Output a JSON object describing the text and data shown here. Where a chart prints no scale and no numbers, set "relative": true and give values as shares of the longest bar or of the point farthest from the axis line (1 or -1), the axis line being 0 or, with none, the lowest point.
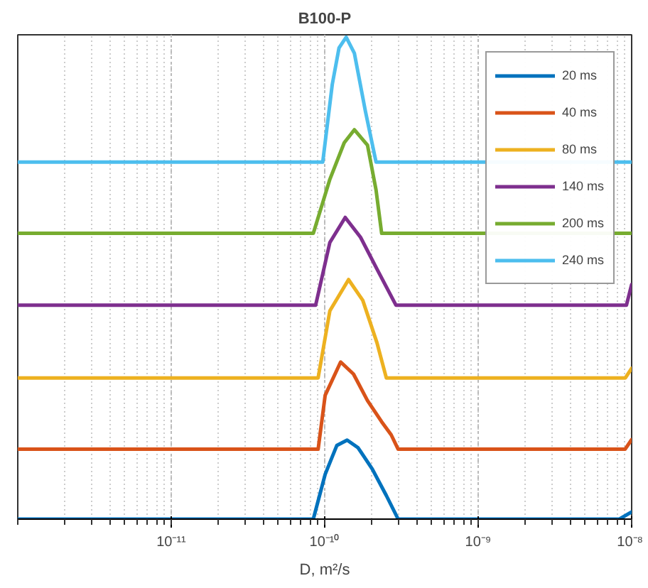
{
  "chart_data": {
    "type": "line",
    "title": "B100-P",
    "xlabel": "D, m²/s",
    "relative": true,
    "log": "x",
    "grid": "x",
    "legend": "top right",
    "line_style": "solid",
    "marker": "none",
    "xlim": [
      1e-12,
      1e-08
    ],
    "xticks": [
      {
        "value": 1e-11,
        "label": "10⁻¹¹"
      },
      {
        "value": 1e-10,
        "label": "10⁻¹⁰"
      },
      {
        "value": 1e-09,
        "label": "10⁻⁹"
      },
      {
        "value": 1e-08,
        "label": "10⁻⁸"
      }
    ],
    "series": [
      {
        "name": "20 ms",
        "color": "#0072bd",
        "x": [
          1e-12,
          8.43e-11,
          1.007e-10,
          1.2e-10,
          1.4e-10,
          1.65e-10,
          2.04e-10,
          2.52e-10,
          3.01e-10,
          8.32e-09,
          1e-08
        ],
        "values": [
          0,
          0,
          0.093,
          0.153,
          0.164,
          0.148,
          0.104,
          0.049,
          0,
          0,
          0.015
        ]
      },
      {
        "name": "40 ms",
        "color": "#d95319",
        "x": [
          1e-12,
          9.06e-11,
          1.007e-10,
          1.27e-10,
          1.54e-10,
          1.9e-10,
          2.35e-10,
          2.71e-10,
          3.01e-10,
          9.06e-09,
          1e-08
        ],
        "values": [
          0.145,
          0.145,
          0.257,
          0.326,
          0.301,
          0.246,
          0.202,
          0.175,
          0.145,
          0.145,
          0.165
        ]
      },
      {
        "name": "80 ms",
        "color": "#edb120",
        "x": [
          1e-12,
          9.06e-11,
          1.08e-10,
          1.43e-10,
          1.77e-10,
          2.19e-10,
          2.52e-10,
          9.1e-09,
          1e-08
        ],
        "values": [
          0.293,
          0.293,
          0.432,
          0.497,
          0.454,
          0.366,
          0.293,
          0.293,
          0.313
        ]
      },
      {
        "name": "140 ms",
        "color": "#7e2f8e",
        "x": [
          1e-12,
          8.73e-11,
          1.08e-10,
          1.36e-10,
          1.71e-10,
          2.19e-10,
          2.91e-10,
          9.25e-09,
          1e-08
        ],
        "values": [
          0.444,
          0.444,
          0.574,
          0.626,
          0.585,
          0.519,
          0.444,
          0.444,
          0.487
        ]
      },
      {
        "name": "200 ms",
        "color": "#77ac30",
        "x": [
          1e-12,
          8.43e-11,
          1.08e-10,
          1.34e-10,
          1.56e-10,
          1.9e-10,
          2.16e-10,
          2.35e-10,
          1e-08
        ],
        "values": [
          0.593,
          0.593,
          0.705,
          0.781,
          0.808,
          0.776,
          0.683,
          0.593,
          0.593
        ]
      },
      {
        "name": "240 ms",
        "color": "#4dbeee",
        "x": [
          1e-12,
          9.71e-11,
          1.12e-10,
          1.24e-10,
          1.38e-10,
          1.56e-10,
          1.84e-10,
          2.16e-10,
          1e-08
        ],
        "values": [
          0.741,
          0.741,
          0.902,
          0.978,
          1.0,
          0.967,
          0.847,
          0.741,
          0.741
        ]
      }
    ]
  }
}
